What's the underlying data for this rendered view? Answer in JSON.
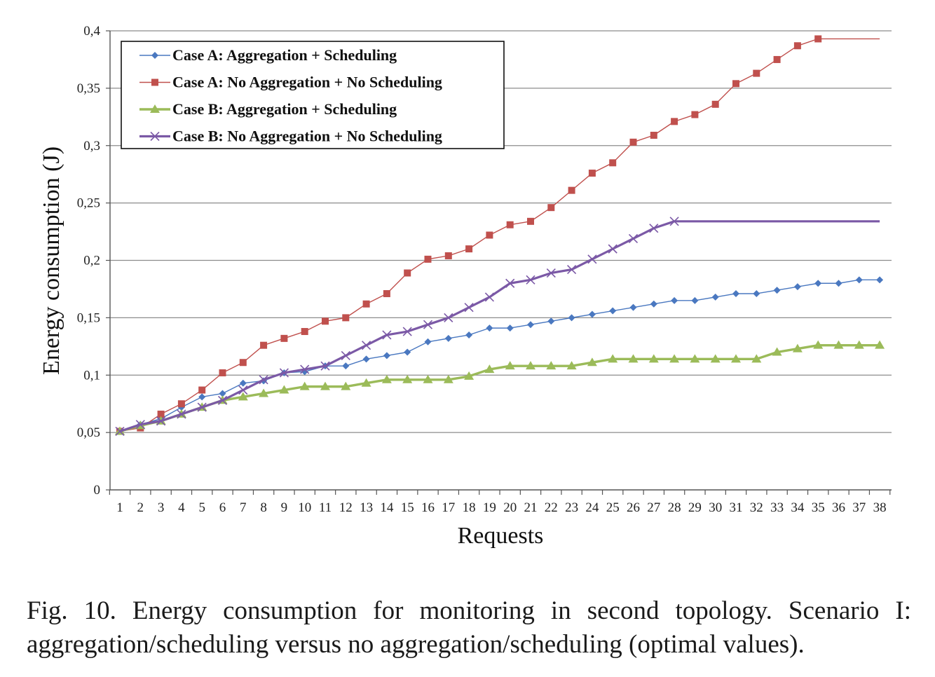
{
  "caption": "Fig. 10.  Energy consumption for monitoring in second topology. Scenario I: aggregation/scheduling versus no aggregation/scheduling (optimal values).",
  "chart_data": {
    "type": "line",
    "title": "",
    "xlabel": "Requests",
    "ylabel": "Energy consumption (J)",
    "x": [
      1,
      2,
      3,
      4,
      5,
      6,
      7,
      8,
      9,
      10,
      11,
      12,
      13,
      14,
      15,
      16,
      17,
      18,
      19,
      20,
      21,
      22,
      23,
      24,
      25,
      26,
      27,
      28,
      29,
      30,
      31,
      32,
      33,
      34,
      35,
      36,
      37,
      38
    ],
    "ylim": [
      0,
      0.4
    ],
    "yticks": [
      0,
      0.05,
      0.1,
      0.15,
      0.2,
      0.25,
      0.3,
      0.35,
      0.4
    ],
    "ytick_labels": [
      "0",
      "0,05",
      "0,1",
      "0,15",
      "0,2",
      "0,25",
      "0,3",
      "0,35",
      "0,4"
    ],
    "grid": true,
    "legend_position": "top-left",
    "series": [
      {
        "name": "Case A: Aggregation + Scheduling",
        "color": "#4a78c0",
        "marker": "diamond",
        "values": [
          0.051,
          0.057,
          0.062,
          0.072,
          0.081,
          0.084,
          0.093,
          0.095,
          0.102,
          0.103,
          0.108,
          0.108,
          0.114,
          0.117,
          0.12,
          0.129,
          0.132,
          0.135,
          0.141,
          0.141,
          0.144,
          0.147,
          0.15,
          0.153,
          0.156,
          0.159,
          0.162,
          0.165,
          0.165,
          0.168,
          0.171,
          0.171,
          0.174,
          0.177,
          0.18,
          0.18,
          0.183,
          0.183
        ]
      },
      {
        "name": "Case A: No Aggregation + No Scheduling",
        "color": "#c0504d",
        "marker": "square",
        "values": [
          0.051,
          0.054,
          0.066,
          0.075,
          0.087,
          0.102,
          0.111,
          0.126,
          0.132,
          0.138,
          0.147,
          0.15,
          0.162,
          0.171,
          0.189,
          0.201,
          0.204,
          0.21,
          0.222,
          0.231,
          0.234,
          0.246,
          0.261,
          0.276,
          0.285,
          0.303,
          0.309,
          0.321,
          0.327,
          0.336,
          0.354,
          0.363,
          0.375,
          0.387,
          0.393,
          0.393,
          0.393,
          0.393
        ]
      },
      {
        "name": "Case B: Aggregation + Scheduling",
        "color": "#9bbb59",
        "marker": "triangle",
        "values": [
          0.051,
          0.056,
          0.06,
          0.066,
          0.072,
          0.078,
          0.081,
          0.084,
          0.087,
          0.09,
          0.09,
          0.09,
          0.093,
          0.096,
          0.096,
          0.096,
          0.096,
          0.099,
          0.105,
          0.108,
          0.108,
          0.108,
          0.108,
          0.111,
          0.114,
          0.114,
          0.114,
          0.114,
          0.114,
          0.114,
          0.114,
          0.114,
          0.12,
          0.123,
          0.126,
          0.126,
          0.126,
          0.126
        ]
      },
      {
        "name": "Case B: No Aggregation + No Scheduling",
        "color": "#7b59a6",
        "marker": "x",
        "values": [
          0.051,
          0.057,
          0.06,
          0.066,
          0.072,
          0.078,
          0.087,
          0.096,
          0.102,
          0.105,
          0.108,
          0.117,
          0.126,
          0.135,
          0.138,
          0.144,
          0.15,
          0.159,
          0.168,
          0.18,
          0.183,
          0.189,
          0.192,
          0.201,
          0.21,
          0.219,
          0.228,
          0.234,
          0.234,
          0.234,
          0.234,
          0.234,
          0.234,
          0.234,
          0.234,
          0.234,
          0.234,
          0.234
        ]
      }
    ]
  }
}
